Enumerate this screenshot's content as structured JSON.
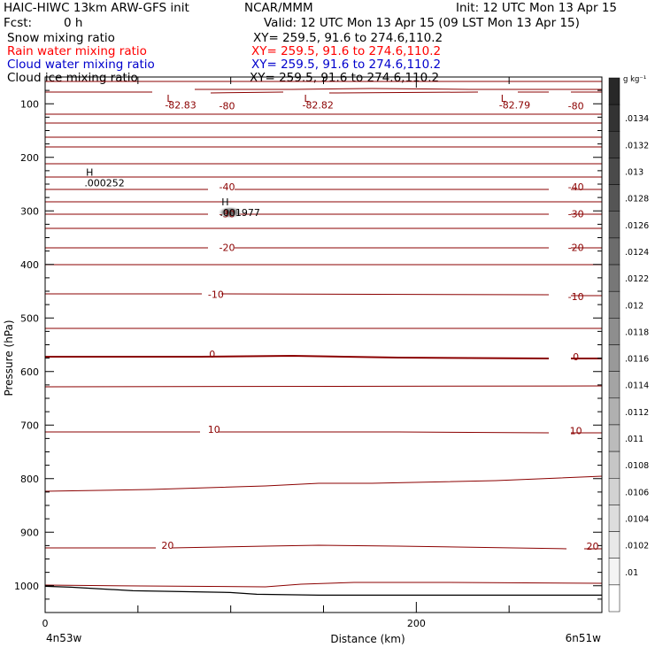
{
  "header": {
    "model": "HAIC-HIWC 13km ARW-GFS init",
    "org": "NCAR/MMM",
    "init": "Init: 12 UTC Mon 13 Apr 15",
    "fcst_label": "Fcst:",
    "fcst_value": "0 h",
    "valid": "Valid: 12 UTC Mon 13 Apr 15 (09 LST Mon 13 Apr 15)",
    "fields": [
      {
        "name": "Snow mixing ratio",
        "xy": "XY= 259.5, 91.6 to 274.6,110.2",
        "color": "#000000"
      },
      {
        "name": "Rain water mixing ratio",
        "xy": "XY= 259.5, 91.6 to 274.6,110.2",
        "color": "#ff0000"
      },
      {
        "name": "Cloud water mixing ratio",
        "xy": "XY= 259.5, 91.6 to 274.6,110.2",
        "color": "#0000cc"
      },
      {
        "name": "Cloud ice mixing ratio",
        "xy": "XY= 259.5, 91.6 to 274.6,110.2",
        "color": "#000000"
      }
    ]
  },
  "chart_data": {
    "type": "contour-cross-section",
    "xlabel": "Distance (km)",
    "ylabel": "Pressure (hPa)",
    "x_ticks": [
      "0",
      "200"
    ],
    "x_range": [
      0,
      300
    ],
    "x_end_labels": [
      "4n53w",
      "6n51w"
    ],
    "y_ticks": [
      "100",
      "200",
      "300",
      "400",
      "500",
      "600",
      "700",
      "800",
      "900",
      "1000"
    ],
    "y_range": [
      50,
      1050
    ],
    "isotherm_color": "#8b0000",
    "contour_labels": [
      {
        "text": "-82.83",
        "x": 73,
        "p": 102
      },
      {
        "text": "-80",
        "x": 98,
        "p": 104
      },
      {
        "text": "-82.82",
        "x": 147,
        "p": 102
      },
      {
        "text": "-82.79",
        "x": 253,
        "p": 102
      },
      {
        "text": "-80",
        "x": 286,
        "p": 104
      },
      {
        "text": "-40",
        "x": 98,
        "p": 255
      },
      {
        "text": "-40",
        "x": 286,
        "p": 255
      },
      {
        "text": "-30",
        "x": 98,
        "p": 305
      },
      {
        "text": "-30",
        "x": 286,
        "p": 305
      },
      {
        "text": "-20",
        "x": 98,
        "p": 368
      },
      {
        "text": "-20",
        "x": 286,
        "p": 368
      },
      {
        "text": "-10",
        "x": 92,
        "p": 456
      },
      {
        "text": "-10",
        "x": 286,
        "p": 460
      },
      {
        "text": "0",
        "x": 90,
        "p": 567
      },
      {
        "text": "0",
        "x": 286,
        "p": 572
      },
      {
        "text": "10",
        "x": 91,
        "p": 708
      },
      {
        "text": "10",
        "x": 286,
        "p": 710
      },
      {
        "text": "20",
        "x": 66,
        "p": 924
      },
      {
        "text": "20",
        "x": 295,
        "p": 926
      }
    ],
    "extrema": [
      {
        "type": "L",
        "x": 67,
        "p": 90
      },
      {
        "type": "L",
        "x": 141,
        "p": 90
      },
      {
        "type": "L",
        "x": 247,
        "p": 90
      },
      {
        "type": "H",
        "x": 24,
        "p": 228,
        "value": ".000252"
      },
      {
        "type": "H",
        "x": 97,
        "p": 283,
        "value": ".001977"
      }
    ],
    "colorbar": {
      "unit": "g kg⁻¹",
      "labels": [
        ".0134",
        ".0132",
        ".013",
        ".0128",
        ".0126",
        ".0124",
        ".0122",
        ".012",
        ".0118",
        ".0116",
        ".0114",
        ".0112",
        ".011",
        ".0108",
        ".0106",
        ".0104",
        ".0102",
        ".01"
      ]
    }
  }
}
